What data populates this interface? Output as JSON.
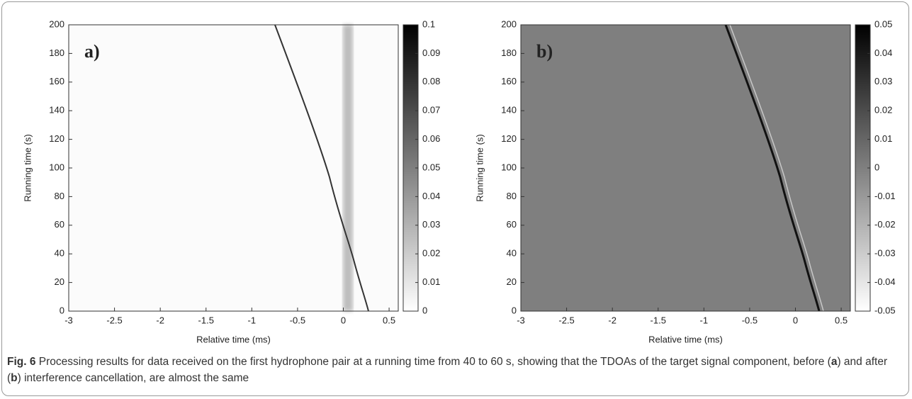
{
  "chart_data": [
    {
      "type": "heatmap",
      "panel_label": "a)",
      "xlabel": "Relative time (ms)",
      "ylabel": "Running time (s)",
      "xlim": [
        -3,
        0.6
      ],
      "xticks": [
        -3,
        -2.5,
        -2,
        -1.5,
        -1,
        -0.5,
        0,
        0.5
      ],
      "ylim": [
        0,
        200
      ],
      "yticks": [
        0,
        20,
        40,
        60,
        80,
        100,
        120,
        140,
        160,
        180,
        200
      ],
      "clim": [
        0,
        0.1
      ],
      "cticks": [
        0,
        0.01,
        0.02,
        0.03,
        0.04,
        0.05,
        0.06,
        0.07,
        0.08,
        0.09,
        0.1
      ]
    },
    {
      "type": "heatmap",
      "panel_label": "b)",
      "xlabel": "Relative time (ms)",
      "ylabel": "Running time (s)",
      "xlim": [
        -3,
        0.6
      ],
      "xticks": [
        -3,
        -2.5,
        -2,
        -1.5,
        -1,
        -0.5,
        0,
        0.5
      ],
      "ylim": [
        0,
        200
      ],
      "yticks": [
        0,
        20,
        40,
        60,
        80,
        100,
        120,
        140,
        160,
        180,
        200
      ],
      "clim": [
        -0.05,
        0.05
      ],
      "cticks": [
        -0.05,
        -0.04,
        -0.03,
        -0.02,
        -0.01,
        0,
        0.01,
        0.02,
        0.03,
        0.04,
        0.05
      ]
    }
  ],
  "caption": {
    "label": "Fig. 6",
    "text_1": " Processing results for data received on the first hydrophone pair at a running time from 40 to 60 s, showing that the TDOAs of the target signal component, before (",
    "a": "a",
    "text_2": ") and after (",
    "b": "b",
    "text_3": ") interference cancellation, are almost the same"
  }
}
